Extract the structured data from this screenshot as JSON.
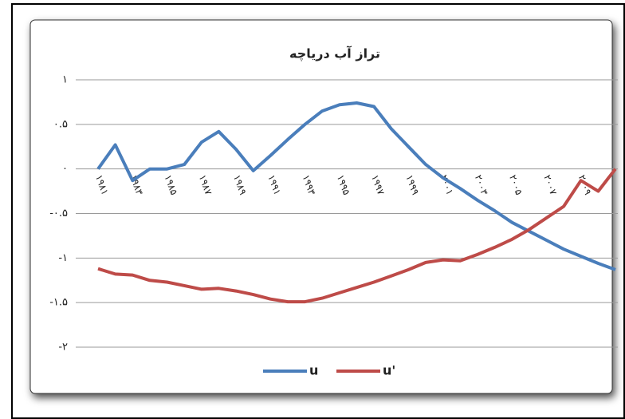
{
  "chart_data": {
    "type": "line",
    "title": "تراز آب دریاچه",
    "categories": [
      "۱۹۸۱",
      null,
      "۱۹۸۳",
      null,
      "۱۹۸۵",
      null,
      "۱۹۸۷",
      null,
      "۱۹۸۹",
      null,
      "۱۹۹۱",
      null,
      "۱۹۹۳",
      null,
      "۱۹۹۵",
      null,
      "۱۹۹۷",
      null,
      "۱۹۹۹",
      null,
      "۲۰۰۱",
      null,
      "۲۰۰۳",
      null,
      "۲۰۰۵",
      null,
      "۲۰۰۷",
      null,
      "۲۰۰۹",
      null,
      null
    ],
    "series": [
      {
        "name": "u",
        "color": "#4a7ebb",
        "values": [
          0,
          0.27,
          -0.13,
          0,
          0,
          0.05,
          0.3,
          0.42,
          0.22,
          -0.02,
          0.15,
          0.33,
          0.5,
          0.65,
          0.72,
          0.74,
          0.7,
          0.45,
          0.25,
          0.05,
          -0.1,
          -0.22,
          -0.35,
          -0.47,
          -0.6,
          -0.7,
          -0.8,
          -0.9,
          -0.98,
          -1.06,
          -1.13
        ]
      },
      {
        "name": "u'",
        "color": "#be4b48",
        "values": [
          -1.12,
          -1.18,
          -1.19,
          -1.25,
          -1.27,
          -1.31,
          -1.35,
          -1.34,
          -1.37,
          -1.41,
          -1.46,
          -1.49,
          -1.49,
          -1.45,
          -1.39,
          -1.33,
          -1.27,
          -1.2,
          -1.13,
          -1.05,
          -1.02,
          -1.03,
          -0.96,
          -0.88,
          -0.79,
          -0.68,
          -0.55,
          -0.42,
          -0.13,
          -0.25,
          0
        ]
      }
    ],
    "ylim": [
      -2,
      1
    ],
    "yticks": [
      {
        "value": -2,
        "label": "-۲"
      },
      {
        "value": -1.5,
        "label": "-۱.۵"
      },
      {
        "value": -1,
        "label": "-۱"
      },
      {
        "value": -0.5,
        "label": "-۰.۵"
      },
      {
        "value": 0,
        "label": "۰"
      },
      {
        "value": 0.5,
        "label": "۰.۵"
      },
      {
        "value": 1,
        "label": "۱"
      }
    ],
    "grid": true,
    "legend": "bottom"
  }
}
